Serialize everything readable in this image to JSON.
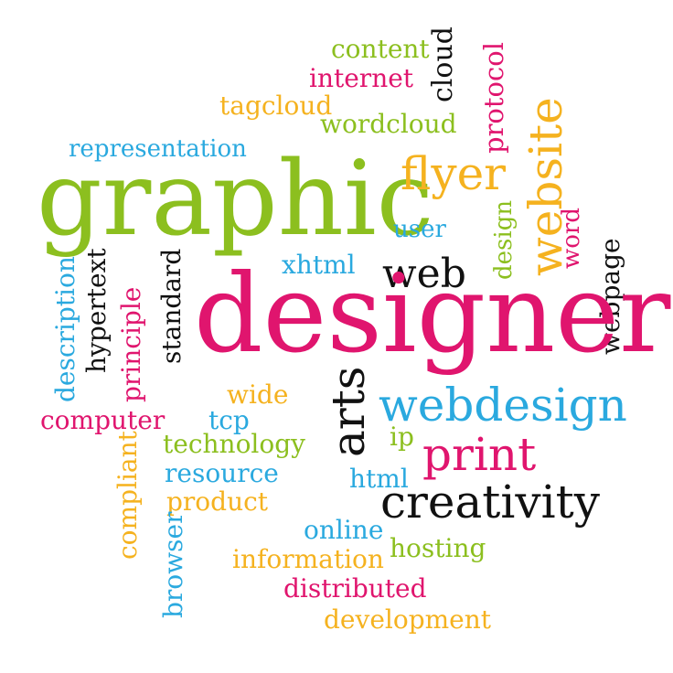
{
  "words": {
    "content": "content",
    "internet": "internet",
    "cloud": "cloud",
    "protocol": "protocol",
    "tagcloud": "tagcloud",
    "wordcloud": "wordcloud",
    "website": "website",
    "representation": "representation",
    "graphic": "graphic",
    "flyer": "flyer",
    "user": "user",
    "design": "design",
    "word": "word",
    "xhtml": "xhtml",
    "web": "web",
    "webpage": "webpage",
    "description": "description",
    "hypertext": "hypertext",
    "principle": "principle",
    "standard": "standard",
    "designer": "designer",
    "wide": "wide",
    "arts": "arts",
    "webdesign": "webdesign",
    "computer": "computer",
    "tcp": "tcp",
    "ip": "ip",
    "technology": "technology",
    "print": "print",
    "compliant": "compliant",
    "resource": "resource",
    "html": "html",
    "product": "product",
    "creativity": "creativity",
    "browser": "browser",
    "online": "online",
    "information": "information",
    "hosting": "hosting",
    "distributed": "distributed",
    "development": "development"
  },
  "colors": {
    "green": "#8cbf1f",
    "pink": "#e0156e",
    "blue": "#2aa9df",
    "gold": "#f5b21f",
    "black": "#111111"
  }
}
